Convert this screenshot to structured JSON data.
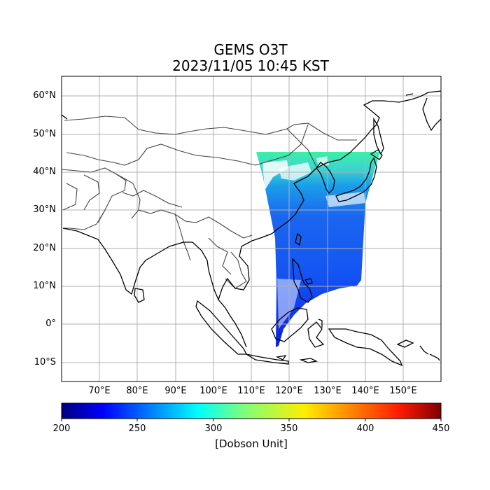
{
  "title": {
    "line1": "GEMS O3T",
    "line2": "2023/11/05 10:45 KST"
  },
  "map": {
    "extent": {
      "lon": [
        60,
        160
      ],
      "lat": [
        -15,
        65
      ]
    },
    "lat_ticks": [
      {
        "value": 60,
        "label": "60°N"
      },
      {
        "value": 50,
        "label": "50°N"
      },
      {
        "value": 40,
        "label": "40°N"
      },
      {
        "value": 30,
        "label": "30°N"
      },
      {
        "value": 20,
        "label": "20°N"
      },
      {
        "value": 10,
        "label": "10°N"
      },
      {
        "value": 0,
        "label": "0°"
      },
      {
        "value": -10,
        "label": "10°S"
      }
    ],
    "lon_ticks": [
      {
        "value": 70,
        "label": "70°E"
      },
      {
        "value": 80,
        "label": "80°E"
      },
      {
        "value": 90,
        "label": "90°E"
      },
      {
        "value": 100,
        "label": "100°E"
      },
      {
        "value": 110,
        "label": "110°E"
      },
      {
        "value": 120,
        "label": "120°E"
      },
      {
        "value": 130,
        "label": "130°E"
      },
      {
        "value": 140,
        "label": "140°E"
      },
      {
        "value": 150,
        "label": "150°E"
      }
    ],
    "grid": true
  },
  "colorbar": {
    "ticks": [
      "200",
      "250",
      "300",
      "350",
      "400",
      "450"
    ],
    "range": [
      200,
      450
    ],
    "colormap": "jet",
    "label": "[Dobson Unit]"
  },
  "colors": {
    "coast": "#000000",
    "borders": "#444444",
    "grid": "#b0b0b0"
  }
}
